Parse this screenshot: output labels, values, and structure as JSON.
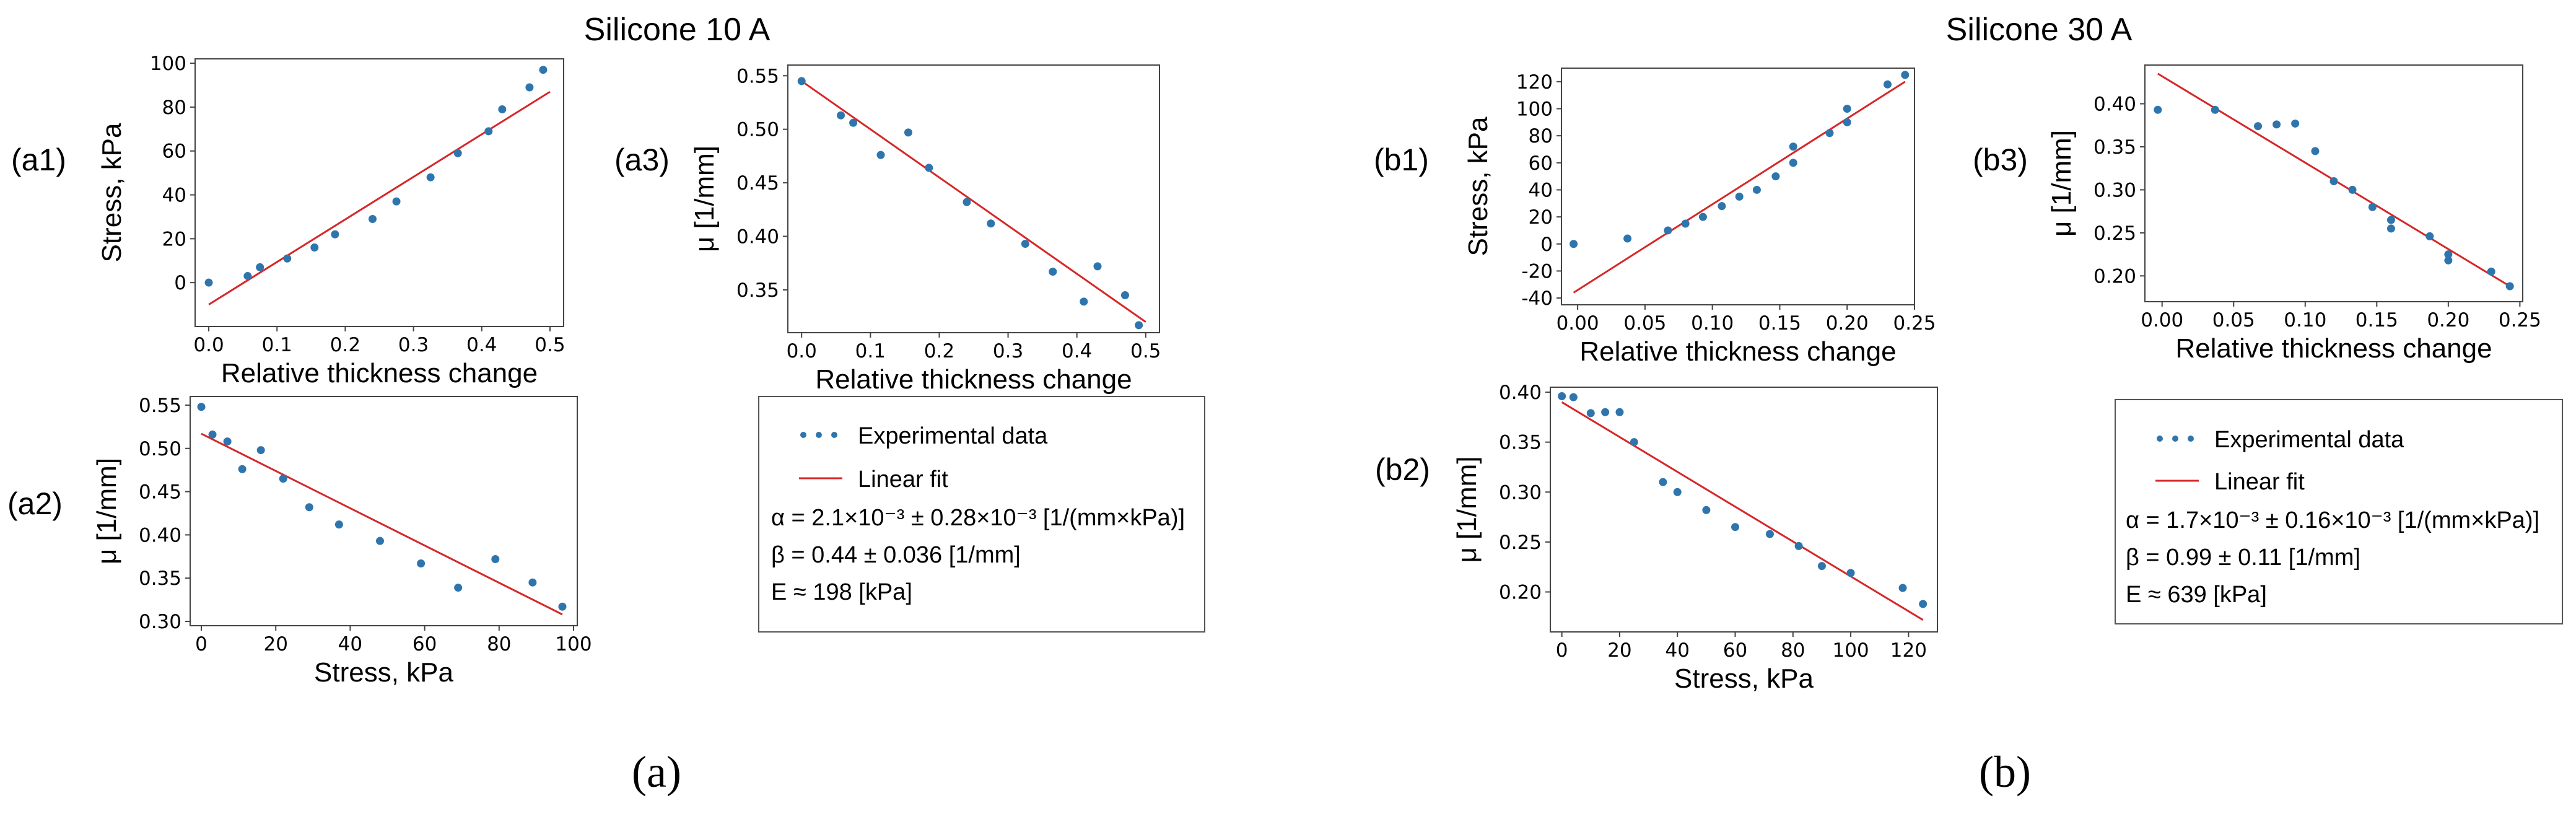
{
  "figure": {
    "title_left": "Silicone 10 A",
    "title_right": "Silicone 30 A",
    "sublabel_a": "(a)",
    "sublabel_b": "(b)",
    "colors": {
      "points": "#2f75ad",
      "fit": "#d62728",
      "axis": "#444444"
    }
  },
  "legend_a": {
    "entries": [
      "Experimental data",
      "Linear fit"
    ],
    "alpha": "α = 2.1×10⁻³ ± 0.28×10⁻³ [1/(mm×kPa)]",
    "beta": "β = 0.44 ± 0.036 [1/mm]",
    "e": "E ≈ 198 [kPa]"
  },
  "legend_b": {
    "entries": [
      "Experimental data",
      "Linear fit"
    ],
    "alpha": "α = 1.7×10⁻³ ± 0.16×10⁻³ [1/(mm×kPa)]",
    "beta": "β = 0.99 ± 0.11 [1/mm]",
    "e": "E ≈ 639 [kPa]"
  },
  "chart_data": [
    {
      "id": "a1",
      "panel": "(a1)",
      "type": "scatter",
      "xlabel": "Relative thickness change",
      "ylabel": "Stress, kPa",
      "xlim": [
        -0.02,
        0.52
      ],
      "ylim": [
        -20,
        102
      ],
      "xticks": [
        0.0,
        0.1,
        0.2,
        0.3,
        0.4,
        0.5
      ],
      "xticklabels": [
        "0.0",
        "0.1",
        "0.2",
        "0.3",
        "0.4",
        "0.5"
      ],
      "yticks": [
        0,
        20,
        40,
        60,
        80,
        100
      ],
      "yticklabels": [
        "0",
        "20",
        "40",
        "60",
        "80",
        "100"
      ],
      "x": [
        0.0,
        0.057,
        0.075,
        0.115,
        0.155,
        0.185,
        0.24,
        0.275,
        0.325,
        0.365,
        0.41,
        0.43,
        0.47,
        0.49
      ],
      "y": [
        0,
        3,
        7,
        11,
        16,
        22,
        29,
        37,
        48,
        59,
        69,
        79,
        89,
        97
      ],
      "fit": [
        [
          0.0,
          -10
        ],
        [
          0.5,
          87
        ]
      ]
    },
    {
      "id": "a2",
      "panel": "(a2)",
      "type": "scatter",
      "xlabel": "Stress, kPa",
      "ylabel": "μ [1/mm]",
      "xlim": [
        -3,
        101
      ],
      "ylim": [
        0.295,
        0.56
      ],
      "xticks": [
        0,
        20,
        40,
        60,
        80,
        100
      ],
      "xticklabels": [
        "0",
        "20",
        "40",
        "60",
        "80",
        "100"
      ],
      "yticks": [
        0.3,
        0.35,
        0.4,
        0.45,
        0.5,
        0.55
      ],
      "yticklabels": [
        "0.30",
        "0.35",
        "0.40",
        "0.45",
        "0.50",
        "0.55"
      ],
      "x": [
        0,
        3,
        7,
        11,
        16,
        22,
        29,
        37,
        48,
        59,
        69,
        79,
        89,
        97
      ],
      "y": [
        0.548,
        0.516,
        0.508,
        0.476,
        0.498,
        0.465,
        0.432,
        0.412,
        0.393,
        0.367,
        0.339,
        0.372,
        0.345,
        0.317
      ],
      "fit": [
        [
          0,
          0.517
        ],
        [
          97,
          0.308
        ]
      ]
    },
    {
      "id": "a3",
      "panel": "(a3)",
      "type": "scatter",
      "xlabel": "Relative thickness change",
      "ylabel": "μ [1/mm]",
      "xlim": [
        -0.02,
        0.52
      ],
      "ylim": [
        0.31,
        0.56
      ],
      "xticks": [
        0.0,
        0.1,
        0.2,
        0.3,
        0.4,
        0.5
      ],
      "xticklabels": [
        "0.0",
        "0.1",
        "0.2",
        "0.3",
        "0.4",
        "0.5"
      ],
      "yticks": [
        0.35,
        0.4,
        0.45,
        0.5,
        0.55
      ],
      "yticklabels": [
        "0.35",
        "0.40",
        "0.45",
        "0.50",
        "0.55"
      ],
      "x": [
        0.0,
        0.057,
        0.075,
        0.115,
        0.155,
        0.185,
        0.24,
        0.275,
        0.325,
        0.365,
        0.41,
        0.43,
        0.47,
        0.49
      ],
      "y": [
        0.545,
        0.513,
        0.506,
        0.476,
        0.497,
        0.464,
        0.432,
        0.412,
        0.393,
        0.367,
        0.339,
        0.372,
        0.345,
        0.317
      ],
      "fit": [
        [
          0.0,
          0.545
        ],
        [
          0.5,
          0.32
        ]
      ]
    },
    {
      "id": "b1",
      "panel": "(b1)",
      "type": "scatter",
      "xlabel": "Relative thickness change",
      "ylabel": "Stress, kPa",
      "xlim": [
        -0.012,
        0.25
      ],
      "ylim": [
        -45,
        130
      ],
      "xticks": [
        0.0,
        0.05,
        0.1,
        0.15,
        0.2,
        0.25
      ],
      "xticklabels": [
        "0.00",
        "0.05",
        "0.10",
        "0.15",
        "0.20",
        "0.25"
      ],
      "yticks": [
        -40,
        -20,
        0,
        20,
        40,
        60,
        80,
        100,
        120
      ],
      "yticklabels": [
        "-40",
        "-20",
        "0",
        "20",
        "40",
        "60",
        "80",
        "100",
        "120"
      ],
      "x": [
        -0.003,
        0.037,
        0.067,
        0.08,
        0.093,
        0.107,
        0.12,
        0.133,
        0.147,
        0.16,
        0.16,
        0.187,
        0.2,
        0.2,
        0.23,
        0.243
      ],
      "y": [
        0,
        4,
        10,
        15,
        20,
        28,
        35,
        40,
        50,
        60,
        72,
        82,
        90,
        100,
        118,
        125
      ],
      "fit": [
        [
          -0.003,
          -36
        ],
        [
          0.243,
          120
        ]
      ]
    },
    {
      "id": "b2",
      "panel": "(b2)",
      "type": "scatter",
      "xlabel": "Stress, kPa",
      "ylabel": "μ [1/mm]",
      "xlim": [
        -4,
        130
      ],
      "ylim": [
        0.16,
        0.405
      ],
      "xticks": [
        0,
        20,
        40,
        60,
        80,
        100,
        120
      ],
      "xticklabels": [
        "0",
        "20",
        "40",
        "60",
        "80",
        "100",
        "120"
      ],
      "yticks": [
        0.2,
        0.25,
        0.3,
        0.35,
        0.4
      ],
      "yticklabels": [
        "0.20",
        "0.25",
        "0.30",
        "0.35",
        "0.40"
      ],
      "x": [
        0,
        4,
        10,
        15,
        20,
        25,
        35,
        40,
        50,
        60,
        72,
        82,
        90,
        100,
        118,
        125
      ],
      "y": [
        0.396,
        0.395,
        0.379,
        0.38,
        0.38,
        0.35,
        0.31,
        0.3,
        0.282,
        0.265,
        0.258,
        0.246,
        0.226,
        0.219,
        0.204,
        0.188
      ],
      "fit": [
        [
          0,
          0.39
        ],
        [
          125,
          0.172
        ]
      ]
    },
    {
      "id": "b3",
      "panel": "(b3)",
      "type": "scatter",
      "xlabel": "Relative thickness change",
      "ylabel": "μ [1/mm]",
      "xlim": [
        -0.012,
        0.252
      ],
      "ylim": [
        0.17,
        0.445
      ],
      "xticks": [
        0.0,
        0.05,
        0.1,
        0.15,
        0.2,
        0.25
      ],
      "xticklabels": [
        "0.00",
        "0.05",
        "0.10",
        "0.15",
        "0.20",
        "0.25"
      ],
      "yticks": [
        0.2,
        0.25,
        0.3,
        0.35,
        0.4
      ],
      "yticklabels": [
        "0.20",
        "0.25",
        "0.30",
        "0.35",
        "0.40"
      ],
      "x": [
        -0.003,
        0.037,
        0.067,
        0.08,
        0.093,
        0.107,
        0.12,
        0.133,
        0.147,
        0.16,
        0.16,
        0.187,
        0.2,
        0.2,
        0.23,
        0.243
      ],
      "y": [
        0.393,
        0.393,
        0.374,
        0.376,
        0.377,
        0.345,
        0.31,
        0.3,
        0.28,
        0.265,
        0.255,
        0.246,
        0.225,
        0.218,
        0.205,
        0.188
      ],
      "fit": [
        [
          -0.003,
          0.435
        ],
        [
          0.243,
          0.188
        ]
      ]
    }
  ]
}
